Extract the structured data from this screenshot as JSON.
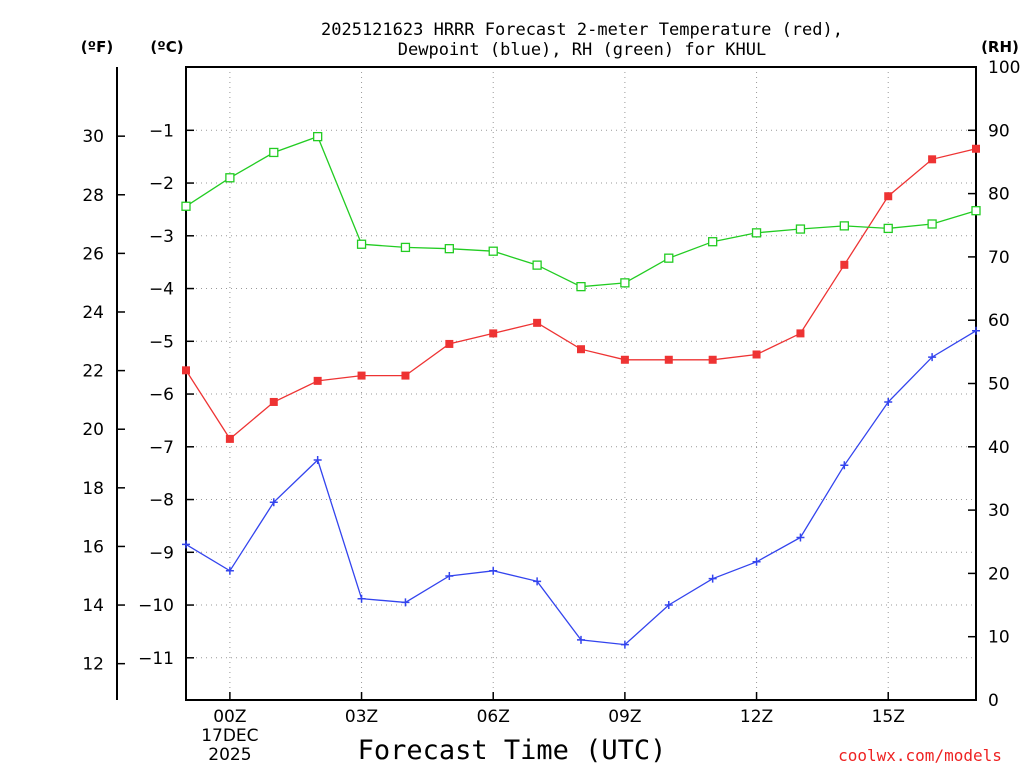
{
  "chart_data": {
    "type": "line",
    "title_line1": "2025121623 HRRR Forecast 2-meter Temperature (red),",
    "title_line2": "Dewpoint (blue), RH (green) for KHUL",
    "xlabel": "Forecast Time (UTC)",
    "unit_f": "(ºF)",
    "unit_c": "(ºC)",
    "unit_rh": "(RH)",
    "credit": "coolwx.com/models",
    "x_hours": [
      -1,
      0,
      1,
      2,
      3,
      4,
      5,
      6,
      7,
      8,
      9,
      10,
      11,
      12,
      13,
      14,
      15,
      16,
      17
    ],
    "xlim": [
      -1,
      17
    ],
    "x_ticks": [
      {
        "hour": 0,
        "label": "00Z",
        "sub1": "17DEC",
        "sub2": "2025"
      },
      {
        "hour": 3,
        "label": "03Z"
      },
      {
        "hour": 6,
        "label": "06Z"
      },
      {
        "hour": 9,
        "label": "09Z"
      },
      {
        "hour": 12,
        "label": "12Z"
      },
      {
        "hour": 15,
        "label": "15Z"
      }
    ],
    "ylim_c": [
      -11.8,
      0.2
    ],
    "c_ticks": [
      -1,
      -2,
      -3,
      -4,
      -5,
      -6,
      -7,
      -8,
      -9,
      -10,
      -11
    ],
    "c_tick_labels": [
      "−1",
      "−2",
      "−3",
      "−4",
      "−5",
      "−6",
      "−7",
      "−8",
      "−9",
      "−10",
      "−11"
    ],
    "f_ticks": [
      30,
      28,
      26,
      24,
      22,
      20,
      18,
      16,
      14,
      12
    ],
    "rh_ticks": [
      100,
      90,
      80,
      70,
      60,
      50,
      40,
      30,
      20,
      10,
      0
    ],
    "ylim_rh": [
      0,
      100
    ],
    "series": [
      {
        "name": "Temperature",
        "axis": "c",
        "color": "#ee3333",
        "marker": "filled-square",
        "values": [
          -5.55,
          -6.85,
          -6.15,
          -5.75,
          -5.65,
          -5.65,
          -5.05,
          -4.85,
          -4.65,
          -5.15,
          -5.35,
          -5.35,
          -5.35,
          -5.25,
          -4.85,
          -3.55,
          -2.25,
          -1.55,
          -1.35
        ]
      },
      {
        "name": "Dewpoint",
        "axis": "c",
        "color": "#3344ee",
        "marker": "plus",
        "values": [
          -8.85,
          -9.35,
          -8.05,
          -7.25,
          -9.88,
          -9.95,
          -9.45,
          -9.35,
          -9.55,
          -10.66,
          -10.75,
          -10.0,
          -9.5,
          -9.18,
          -8.72,
          -7.35,
          -6.15,
          -5.3,
          -4.8
        ]
      },
      {
        "name": "RH",
        "axis": "rh",
        "color": "#22cc22",
        "marker": "open-square",
        "values": [
          78,
          82.5,
          86.5,
          89,
          72,
          71.5,
          71.3,
          70.9,
          68.7,
          65.3,
          65.9,
          69.8,
          72.4,
          73.8,
          74.4,
          74.9,
          74.5,
          75.2,
          77.3
        ]
      }
    ]
  }
}
